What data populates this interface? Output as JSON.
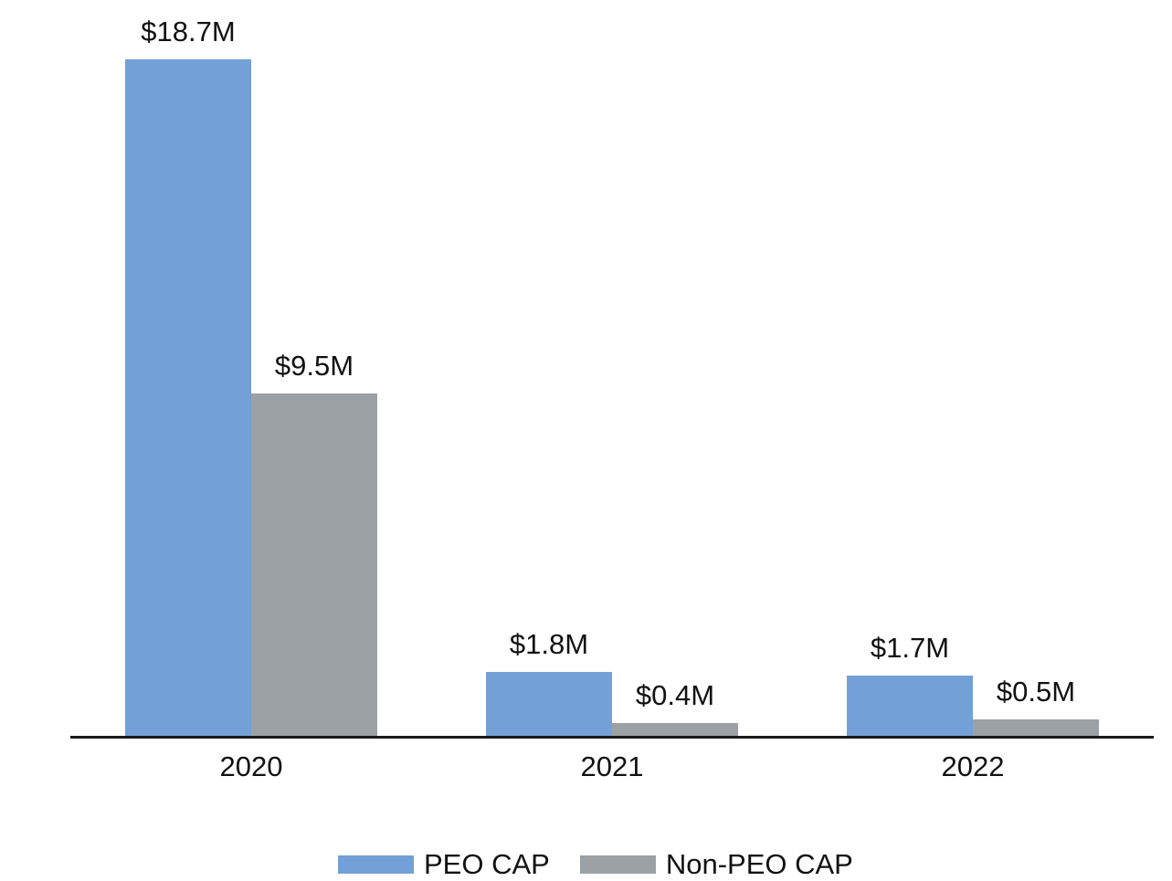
{
  "chart_data": {
    "type": "bar",
    "categories": [
      "2020",
      "2021",
      "2022"
    ],
    "series": [
      {
        "name": "PEO CAP",
        "color": "#73A0D6",
        "values": [
          18.7,
          1.8,
          1.7
        ],
        "value_labels": [
          "$18.7M",
          "$1.8M",
          "$1.7M"
        ]
      },
      {
        "name": "Non-PEO CAP",
        "color": "#9CA1A5",
        "values": [
          9.5,
          0.4,
          0.5
        ],
        "value_labels": [
          "$9.5M",
          "$0.4M",
          "$0.5M"
        ]
      }
    ],
    "title": "",
    "xlabel": "",
    "ylabel": "",
    "ylim": [
      0,
      18.7
    ],
    "grid": false,
    "legend_position": "bottom",
    "axis_color": "#1A1A1A",
    "label_color": "#111111"
  },
  "legend": {
    "items": [
      {
        "label": "PEO CAP",
        "color": "#73A0D6"
      },
      {
        "label": "Non-PEO CAP",
        "color": "#9CA1A5"
      }
    ]
  }
}
